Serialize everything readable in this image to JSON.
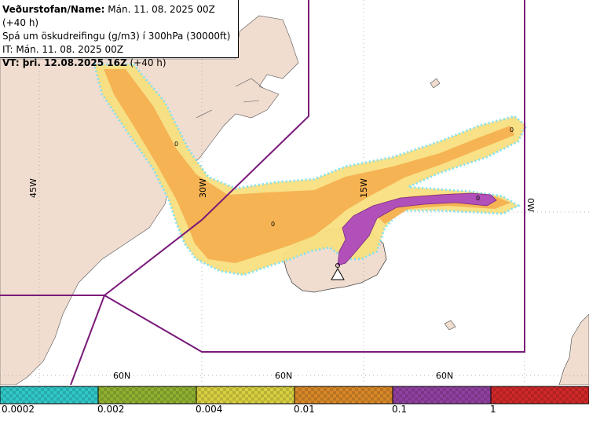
{
  "info": {
    "line1_label": "Veðurstofan/Name:",
    "line1_value": "Mán. 11. 08. 2025 00Z (+40 h)",
    "line2": "Spá um öskudreifingu (g/m3) í 300hPa (30000ft)",
    "line3": "IT: Mán. 11. 08. 2025 00Z",
    "line4_label": "VT: þri. 12.08.2025 16Z",
    "line4_value": "(+40 h)"
  },
  "map_labels": {
    "lon_45w": "45W",
    "lon_30w": "30W",
    "lon_15w": "15W",
    "lon_0w": "0W",
    "lat_60n_1": "60N",
    "lat_60n_2": "60N",
    "lat_60n_3": "60N",
    "contour_zero": "0"
  },
  "legend": {
    "ticks": [
      "0.0002",
      "0.002",
      "0.004",
      "0.01",
      "0.1",
      "1"
    ],
    "colors": [
      "#30c8c8",
      "#90b030",
      "#d8d040",
      "#d88828",
      "#9040a0",
      "#d02828"
    ]
  },
  "colors": {
    "land": "#f0ddd0",
    "sea": "#ffffff",
    "zone_line": "#7a1a7a",
    "ash_outer": "#f8e080",
    "ash_mid": "#f5b050",
    "ash_high": "#b050b8",
    "ash_cyan": "#80e0f0"
  },
  "icons": [
    "volcano-marker-icon"
  ]
}
